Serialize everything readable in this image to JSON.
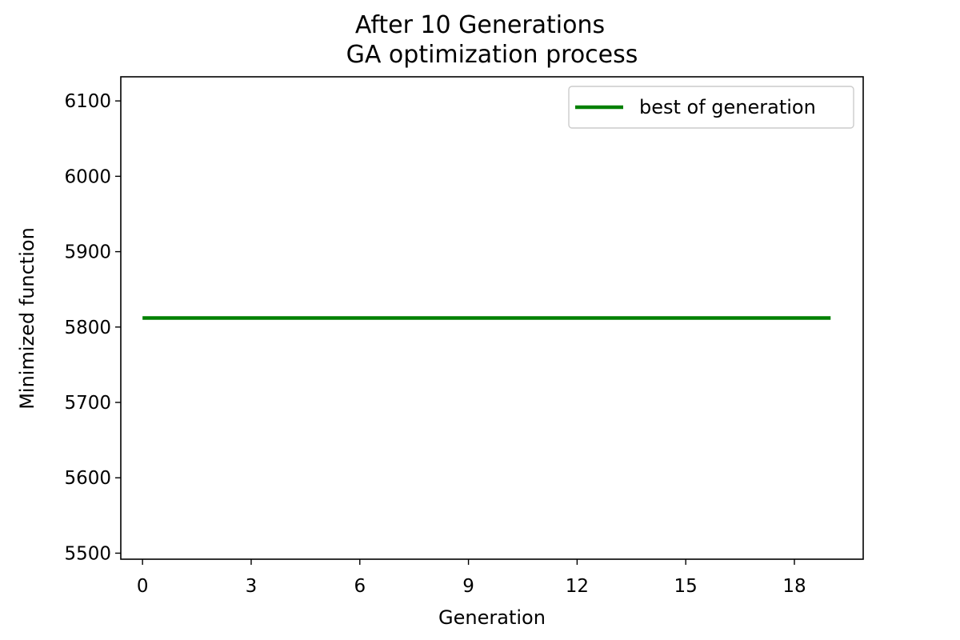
{
  "chart_data": {
    "type": "line",
    "title": "After 10 Generations",
    "subtitle": "GA optimization process",
    "xlabel": "Generation",
    "ylabel": "Minimized function",
    "xlim": [
      -0.6,
      19.9
    ],
    "ylim": [
      5492,
      6132
    ],
    "xticks": [
      0,
      3,
      6,
      9,
      12,
      15,
      18
    ],
    "yticks": [
      5500,
      5600,
      5700,
      5800,
      5900,
      6000,
      6100
    ],
    "grid": false,
    "legend_position": "top-right",
    "series": [
      {
        "name": "best of generation",
        "color": "#008000",
        "x": [
          0,
          1,
          2,
          3,
          4,
          5,
          6,
          7,
          8,
          9,
          10,
          11,
          12,
          13,
          14,
          15,
          16,
          17,
          18,
          19
        ],
        "y": [
          5812,
          5812,
          5812,
          5812,
          5812,
          5812,
          5812,
          5812,
          5812,
          5812,
          5812,
          5812,
          5812,
          5812,
          5812,
          5812,
          5812,
          5812,
          5812,
          5812
        ]
      }
    ]
  }
}
